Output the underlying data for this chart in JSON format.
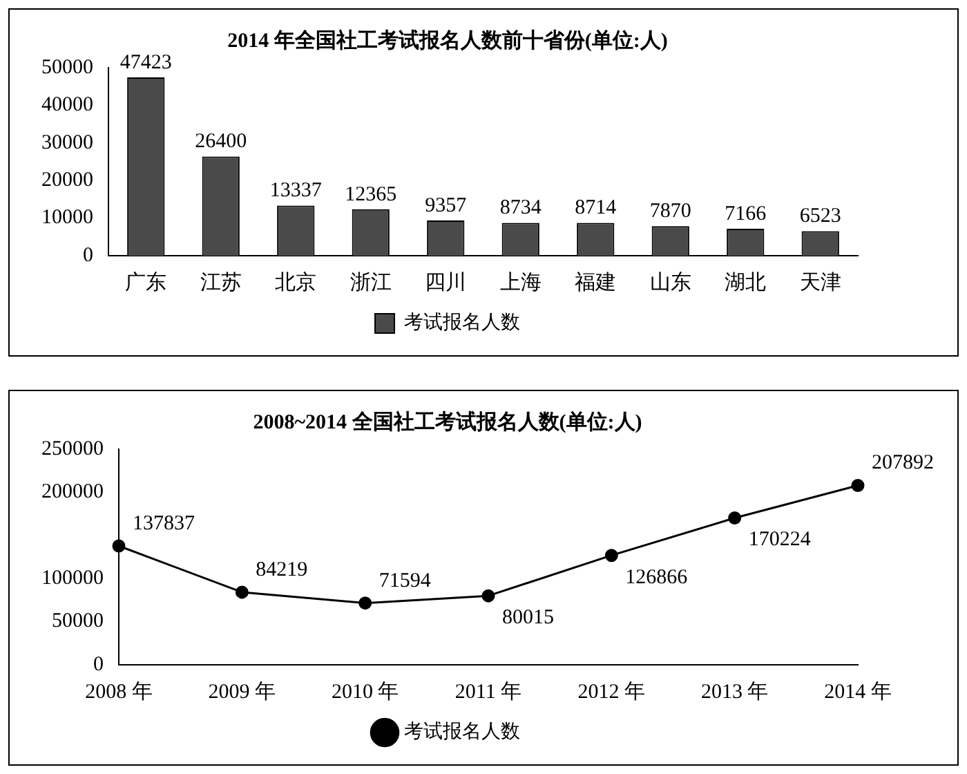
{
  "chart_data": [
    {
      "type": "bar",
      "title": "2014 年全国社工考试报名人数前十省份(单位:人)",
      "categories": [
        "广东",
        "江苏",
        "北京",
        "浙江",
        "四川",
        "上海",
        "福建",
        "山东",
        "湖北",
        "天津"
      ],
      "series": [
        {
          "name": "考试报名人数",
          "color": "#4a4a4a",
          "values": [
            47423,
            26400,
            13337,
            12365,
            9357,
            8734,
            8714,
            7870,
            7166,
            6523
          ]
        }
      ],
      "ylim": [
        0,
        50000
      ],
      "yticks": [
        0,
        10000,
        20000,
        30000,
        40000,
        50000
      ],
      "grid": false,
      "legend": "bottom",
      "data_labels": true
    },
    {
      "type": "line",
      "title": "2008~2014 全国社工考试报名人数(单位:人)",
      "categories": [
        "2008 年",
        "2009 年",
        "2010 年",
        "2011 年",
        "2012 年",
        "2013 年",
        "2014 年"
      ],
      "series": [
        {
          "name": "考试报名人数",
          "color": "#000000",
          "values": [
            137837,
            84219,
            71594,
            80015,
            126866,
            170224,
            207892
          ]
        }
      ],
      "ylim": [
        0,
        250000
      ],
      "yticks": [
        0,
        50000,
        100000,
        200000,
        250000
      ],
      "grid": false,
      "legend": "bottom",
      "marker": "circle",
      "data_labels": true
    }
  ]
}
